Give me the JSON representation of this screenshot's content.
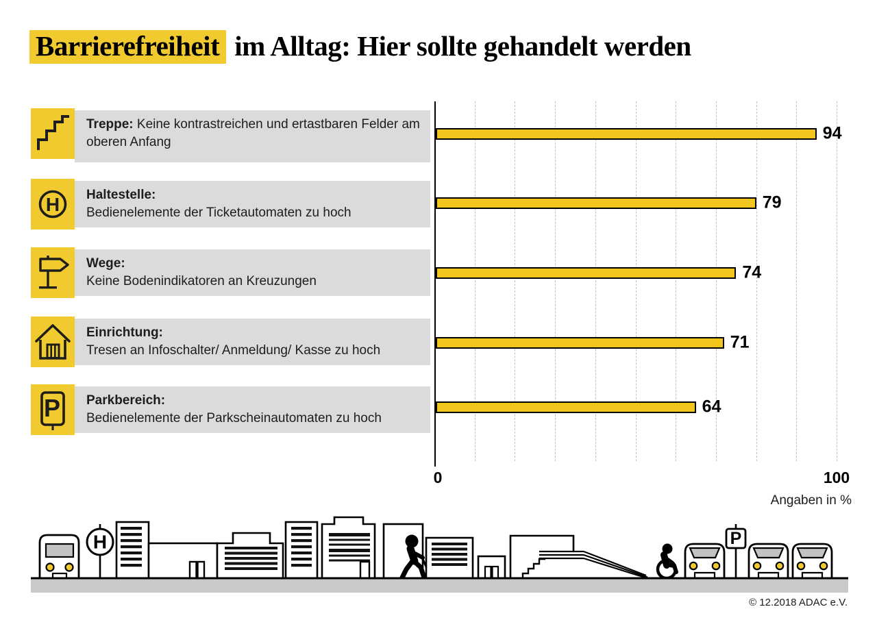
{
  "title": {
    "highlight": "Barrierefreiheit",
    "rest": "im Alltag: Hier sollte gehandelt werden"
  },
  "rows": [
    {
      "icon": "stairs-icon",
      "label": "Treppe:",
      "description": "Keine kontrastreichen und ertastbaren Felder am oberen Anfang",
      "value": 94
    },
    {
      "icon": "bus-stop-sign-icon",
      "icon_letter": "H",
      "label": "Haltestelle:",
      "description": "Bedienelemente der Ticketautomaten zu hoch",
      "value": 79
    },
    {
      "icon": "signpost-icon",
      "label": "Wege:",
      "description": "Keine Bodenindikatoren an Kreuzungen",
      "value": 74
    },
    {
      "icon": "building-icon",
      "label": "Einrichtung:",
      "description": "Tresen an Infoschalter/ Anmeldung/ Kasse zu hoch",
      "value": 71
    },
    {
      "icon": "parking-sign-icon",
      "icon_letter": "P",
      "label": "Parkbereich:",
      "description": "Bedienelemente der Parkscheinautomaten zu hoch",
      "value": 64
    }
  ],
  "chart_data": {
    "type": "bar",
    "orientation": "horizontal",
    "title": "Barrierefreiheit im Alltag: Hier sollte gehandelt werden",
    "categories": [
      "Treppe",
      "Haltestelle",
      "Wege",
      "Einrichtung",
      "Parkbereich"
    ],
    "values": [
      94,
      79,
      74,
      71,
      64
    ],
    "xlabel": "Angaben in %",
    "xlim": [
      0,
      100
    ],
    "tick_labels": [
      "0",
      "100"
    ],
    "grid": "dashed vertical lines every 10 percent",
    "legend": "none",
    "bar_color": "#F2C51D",
    "bar_border_color": "#000000"
  },
  "axis": {
    "min": "0",
    "max": "100",
    "unit": "Angaben in %"
  },
  "footer": {
    "copyright": "© 12.2018 ADAC e.V."
  },
  "skyline": {
    "h_letter": "H",
    "p_letter": "P",
    "elements": [
      "bus",
      "bus-stop-sign",
      "office-buildings",
      "pedestrian-with-cane",
      "stairs",
      "wheelchair-ramp",
      "wheelchair-user",
      "parked-cars",
      "parking-sign"
    ]
  },
  "colors": {
    "accent_yellow": "#F0CA2E",
    "bar_yellow": "#F2C51D",
    "row_background": "#DBDBDB",
    "ground_gray": "#C9C9C9",
    "windshield_gray": "#C2C2C2",
    "gridline_gray": "#C2C2C2",
    "text_black": "#1d1d1b"
  }
}
